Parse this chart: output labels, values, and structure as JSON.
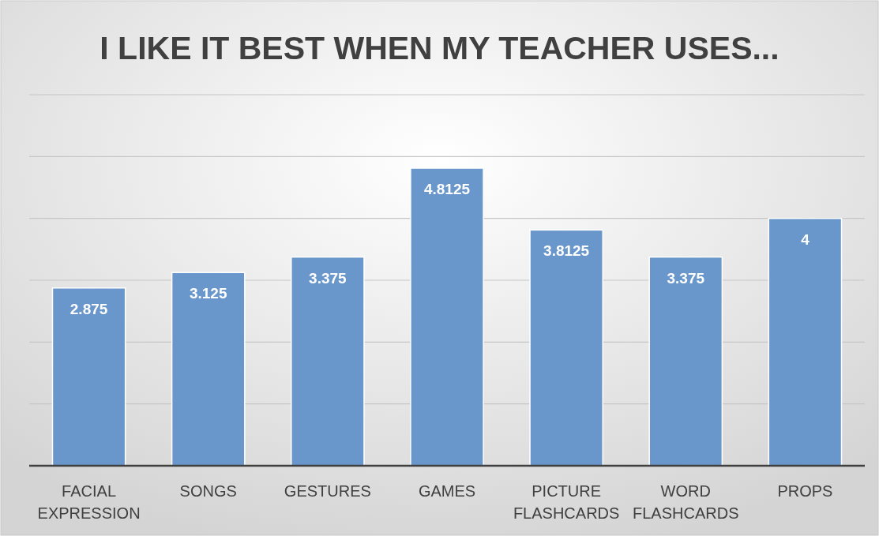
{
  "chart_data": {
    "type": "bar",
    "title": "I LIKE IT BEST WHEN MY TEACHER USES...",
    "categories": [
      "FACIAL EXPRESSION",
      "SONGS",
      "GESTURES",
      "GAMES",
      "PICTURE FLASHCARDS",
      "WORD FLASHCARDS",
      "PROPS"
    ],
    "values": [
      2.875,
      3.125,
      3.375,
      4.8125,
      3.8125,
      3.375,
      4
    ],
    "color": "#6a97cb",
    "ylim": [
      0,
      6
    ],
    "yticks": [
      {
        "value": 0,
        "label": null
      },
      {
        "value": 1,
        "label": null
      },
      {
        "value": 2,
        "label": null
      },
      {
        "value": 3,
        "label": null
      },
      {
        "value": 4,
        "label": null
      },
      {
        "value": 5,
        "label": null
      },
      {
        "value": 6,
        "label": null
      }
    ],
    "grid": "y",
    "data_labels": true
  }
}
